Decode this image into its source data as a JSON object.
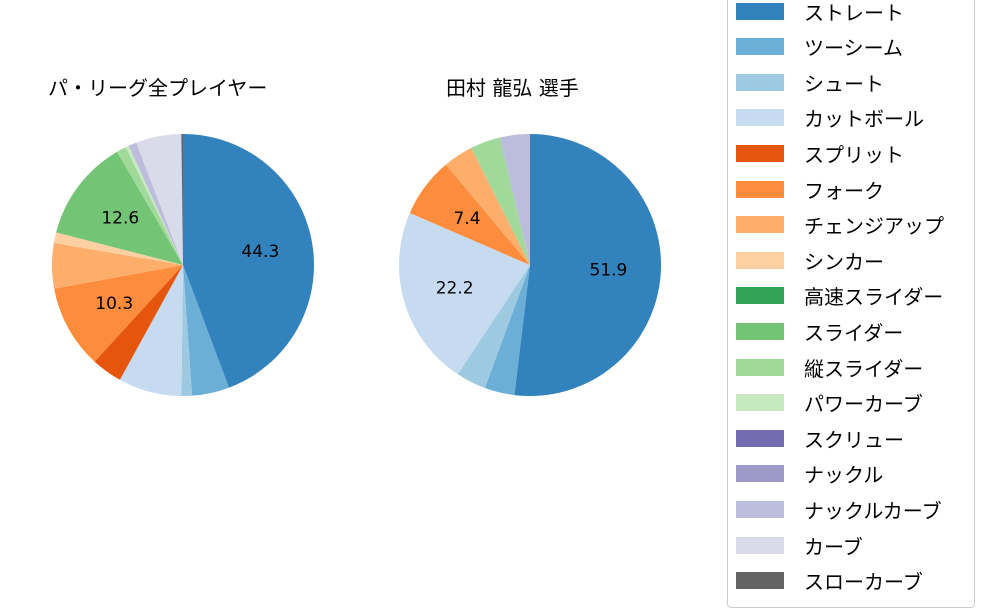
{
  "chart_data": [
    {
      "type": "pie",
      "title": "パ・リーグ全プレイヤー",
      "start_angle": 90,
      "counterclock": false,
      "categories": [
        "ストレート",
        "ツーシーム",
        "シュート",
        "カットボール",
        "スプリット",
        "フォーク",
        "チェンジアップ",
        "シンカー",
        "スライダー",
        "縦スライダー",
        "パワーカーブ",
        "ナックルカーブ",
        "カーブ",
        "スローカーブ"
      ],
      "values": [
        44.3,
        4.6,
        1.3,
        7.8,
        3.8,
        10.3,
        5.6,
        1.3,
        12.6,
        1.2,
        0.4,
        1.0,
        5.6,
        0.2
      ],
      "labels_shown": [
        "44.3",
        "10.3",
        "12.6"
      ]
    },
    {
      "type": "pie",
      "title": "田村 龍弘  選手",
      "start_angle": 90,
      "counterclock": false,
      "categories": [
        "ストレート",
        "ツーシーム",
        "シュート",
        "カットボール",
        "フォーク",
        "チェンジアップ",
        "縦スライダー",
        "ナックルカーブ"
      ],
      "values": [
        51.9,
        3.7,
        3.7,
        22.2,
        7.4,
        3.7,
        3.7,
        3.7
      ],
      "labels_shown": [
        "51.9",
        "22.2",
        "7.4"
      ]
    }
  ],
  "legend": {
    "position": "right",
    "entries": [
      {
        "label": "ストレート",
        "color": "#3182bd"
      },
      {
        "label": "ツーシーム",
        "color": "#6baed6"
      },
      {
        "label": "シュート",
        "color": "#9ecae1"
      },
      {
        "label": "カットボール",
        "color": "#c6dbef"
      },
      {
        "label": "スプリット",
        "color": "#e6550d"
      },
      {
        "label": "フォーク",
        "color": "#fd8d3c"
      },
      {
        "label": "チェンジアップ",
        "color": "#fdae6b"
      },
      {
        "label": "シンカー",
        "color": "#fdd0a2"
      },
      {
        "label": "高速スライダー",
        "color": "#31a354"
      },
      {
        "label": "スライダー",
        "color": "#74c476"
      },
      {
        "label": "縦スライダー",
        "color": "#a1d99b"
      },
      {
        "label": "パワーカーブ",
        "color": "#c7e9c0"
      },
      {
        "label": "スクリュー",
        "color": "#756bb1"
      },
      {
        "label": "ナックル",
        "color": "#9e9ac8"
      },
      {
        "label": "ナックルカーブ",
        "color": "#bcbddc"
      },
      {
        "label": "カーブ",
        "color": "#dadaeb"
      },
      {
        "label": "スローカーブ",
        "color": "#636363"
      }
    ]
  }
}
